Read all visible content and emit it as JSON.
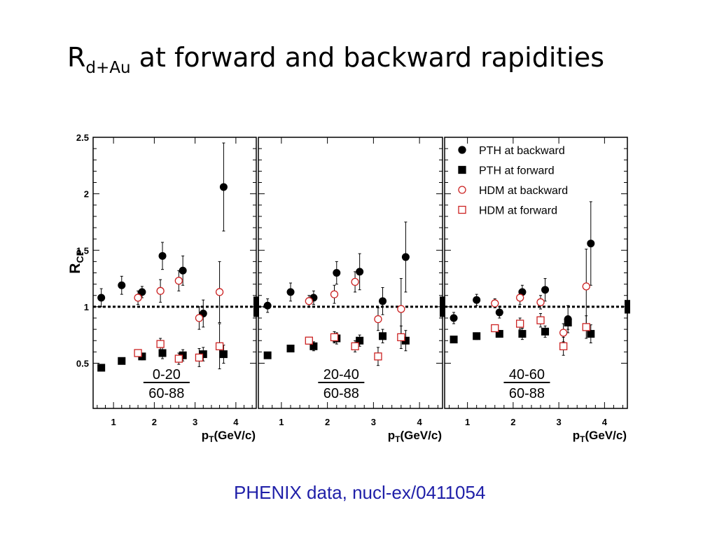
{
  "slide": {
    "title_main": "R",
    "title_sub": "d+Au",
    "title_rest": " at forward and backward rapidities",
    "source_caption": "PHENIX data, nucl-ex/0411054"
  },
  "colors": {
    "hdm_red": "#cc2222",
    "black": "#000000",
    "caption_blue": "#1f1fa8"
  },
  "chart_data": {
    "type": "scatter",
    "ylabel": "RCP",
    "ylabel_main": "R",
    "ylabel_sub": "CP",
    "xlabel_main": "p",
    "xlabel_sub": "T",
    "xlabel_rest": "(GeV/c)",
    "ylim": [
      0.1,
      2.5
    ],
    "xlim": [
      0.5,
      4.5
    ],
    "yticks": [
      0.5,
      1,
      1.5,
      2,
      2.5
    ],
    "ytick_labels": [
      "0.5",
      "1",
      "1.5",
      "2",
      "2.5"
    ],
    "xticks": [
      1,
      2,
      3,
      4
    ],
    "xtick_labels": [
      "1",
      "2",
      "3",
      "4"
    ],
    "reference_line": 1,
    "grid": false,
    "legend_position": "top-right",
    "legend": [
      {
        "label": "PTH at backward",
        "marker": "filled-circle",
        "color": "#000000"
      },
      {
        "label": "PTH at forward",
        "marker": "filled-square",
        "color": "#000000"
      },
      {
        "label": "HDM at backward",
        "marker": "open-circle",
        "color": "#cc2222"
      },
      {
        "label": "HDM at forward",
        "marker": "open-square",
        "color": "#cc2222"
      }
    ],
    "panels": [
      {
        "num_label": "0-20",
        "den_label": "60-88",
        "sys_error": 0.09,
        "series": [
          {
            "name": "PTH at backward",
            "x": [
              0.7,
              1.2,
              1.7,
              2.2,
              2.7,
              3.2,
              3.7
            ],
            "y": [
              1.08,
              1.19,
              1.13,
              1.45,
              1.32,
              0.94,
              2.06
            ],
            "err": [
              0.08,
              0.08,
              0.05,
              0.12,
              0.13,
              0.12,
              0.39
            ]
          },
          {
            "name": "PTH at forward",
            "x": [
              0.7,
              1.2,
              1.7,
              2.2,
              2.7,
              3.2,
              3.7
            ],
            "y": [
              0.46,
              0.52,
              0.56,
              0.59,
              0.57,
              0.58,
              0.58
            ],
            "err": [
              0.02,
              0.02,
              0.03,
              0.05,
              0.05,
              0.06,
              0.08
            ]
          },
          {
            "name": "HDM at backward",
            "x": [
              1.6,
              2.15,
              2.6,
              3.1,
              3.6
            ],
            "y": [
              1.08,
              1.14,
              1.23,
              0.9,
              1.13
            ],
            "err": [
              0.06,
              0.1,
              0.09,
              0.1,
              0.27
            ]
          },
          {
            "name": "HDM at forward",
            "x": [
              1.6,
              2.15,
              2.6,
              3.1,
              3.6
            ],
            "y": [
              0.59,
              0.67,
              0.54,
              0.55,
              0.65
            ],
            "err": [
              0.03,
              0.05,
              0.05,
              0.08,
              0.2
            ]
          }
        ]
      },
      {
        "num_label": "20-40",
        "den_label": "60-88",
        "sys_error": 0.09,
        "series": [
          {
            "name": "PTH at backward",
            "x": [
              0.7,
              1.2,
              1.7,
              2.2,
              2.7,
              3.2,
              3.7
            ],
            "y": [
              1.01,
              1.13,
              1.08,
              1.3,
              1.31,
              1.05,
              1.44
            ],
            "err": [
              0.06,
              0.08,
              0.06,
              0.1,
              0.16,
              0.12,
              0.31
            ]
          },
          {
            "name": "PTH at forward",
            "x": [
              0.7,
              1.2,
              1.7,
              2.2,
              2.7,
              3.2,
              3.7
            ],
            "y": [
              0.57,
              0.63,
              0.65,
              0.72,
              0.7,
              0.74,
              0.7
            ],
            "err": [
              0.02,
              0.03,
              0.04,
              0.05,
              0.05,
              0.06,
              0.09
            ]
          },
          {
            "name": "HDM at backward",
            "x": [
              1.6,
              2.15,
              2.6,
              3.1,
              3.6
            ],
            "y": [
              1.05,
              1.11,
              1.22,
              0.89,
              0.98
            ],
            "err": [
              0.05,
              0.08,
              0.09,
              0.1,
              0.27
            ]
          },
          {
            "name": "HDM at forward",
            "x": [
              1.6,
              2.15,
              2.6,
              3.1,
              3.6
            ],
            "y": [
              0.7,
              0.73,
              0.65,
              0.56,
              0.73
            ],
            "err": [
              0.03,
              0.05,
              0.05,
              0.08,
              0.1
            ]
          }
        ]
      },
      {
        "num_label": "40-60",
        "den_label": "60-88",
        "sys_error": 0.06,
        "series": [
          {
            "name": "PTH at backward",
            "x": [
              0.7,
              1.2,
              1.7,
              2.2,
              2.7,
              3.2,
              3.7
            ],
            "y": [
              0.9,
              1.06,
              0.95,
              1.13,
              1.15,
              0.89,
              1.56
            ],
            "err": [
              0.05,
              0.05,
              0.05,
              0.06,
              0.1,
              0.12,
              0.37
            ]
          },
          {
            "name": "PTH at forward",
            "x": [
              0.7,
              1.2,
              1.7,
              2.2,
              2.7,
              3.2,
              3.7
            ],
            "y": [
              0.71,
              0.74,
              0.76,
              0.76,
              0.78,
              0.86,
              0.76
            ],
            "err": [
              0.02,
              0.03,
              0.03,
              0.05,
              0.05,
              0.06,
              0.08
            ]
          },
          {
            "name": "HDM at backward",
            "x": [
              1.6,
              2.15,
              2.6,
              3.1,
              3.6
            ],
            "y": [
              1.03,
              1.08,
              1.04,
              0.77,
              1.18
            ],
            "err": [
              0.04,
              0.06,
              0.06,
              0.08,
              0.33
            ]
          },
          {
            "name": "HDM at forward",
            "x": [
              1.6,
              2.15,
              2.6,
              3.1,
              3.6
            ],
            "y": [
              0.81,
              0.85,
              0.88,
              0.65,
              0.82
            ],
            "err": [
              0.03,
              0.05,
              0.06,
              0.08,
              0.1
            ]
          }
        ]
      }
    ]
  }
}
